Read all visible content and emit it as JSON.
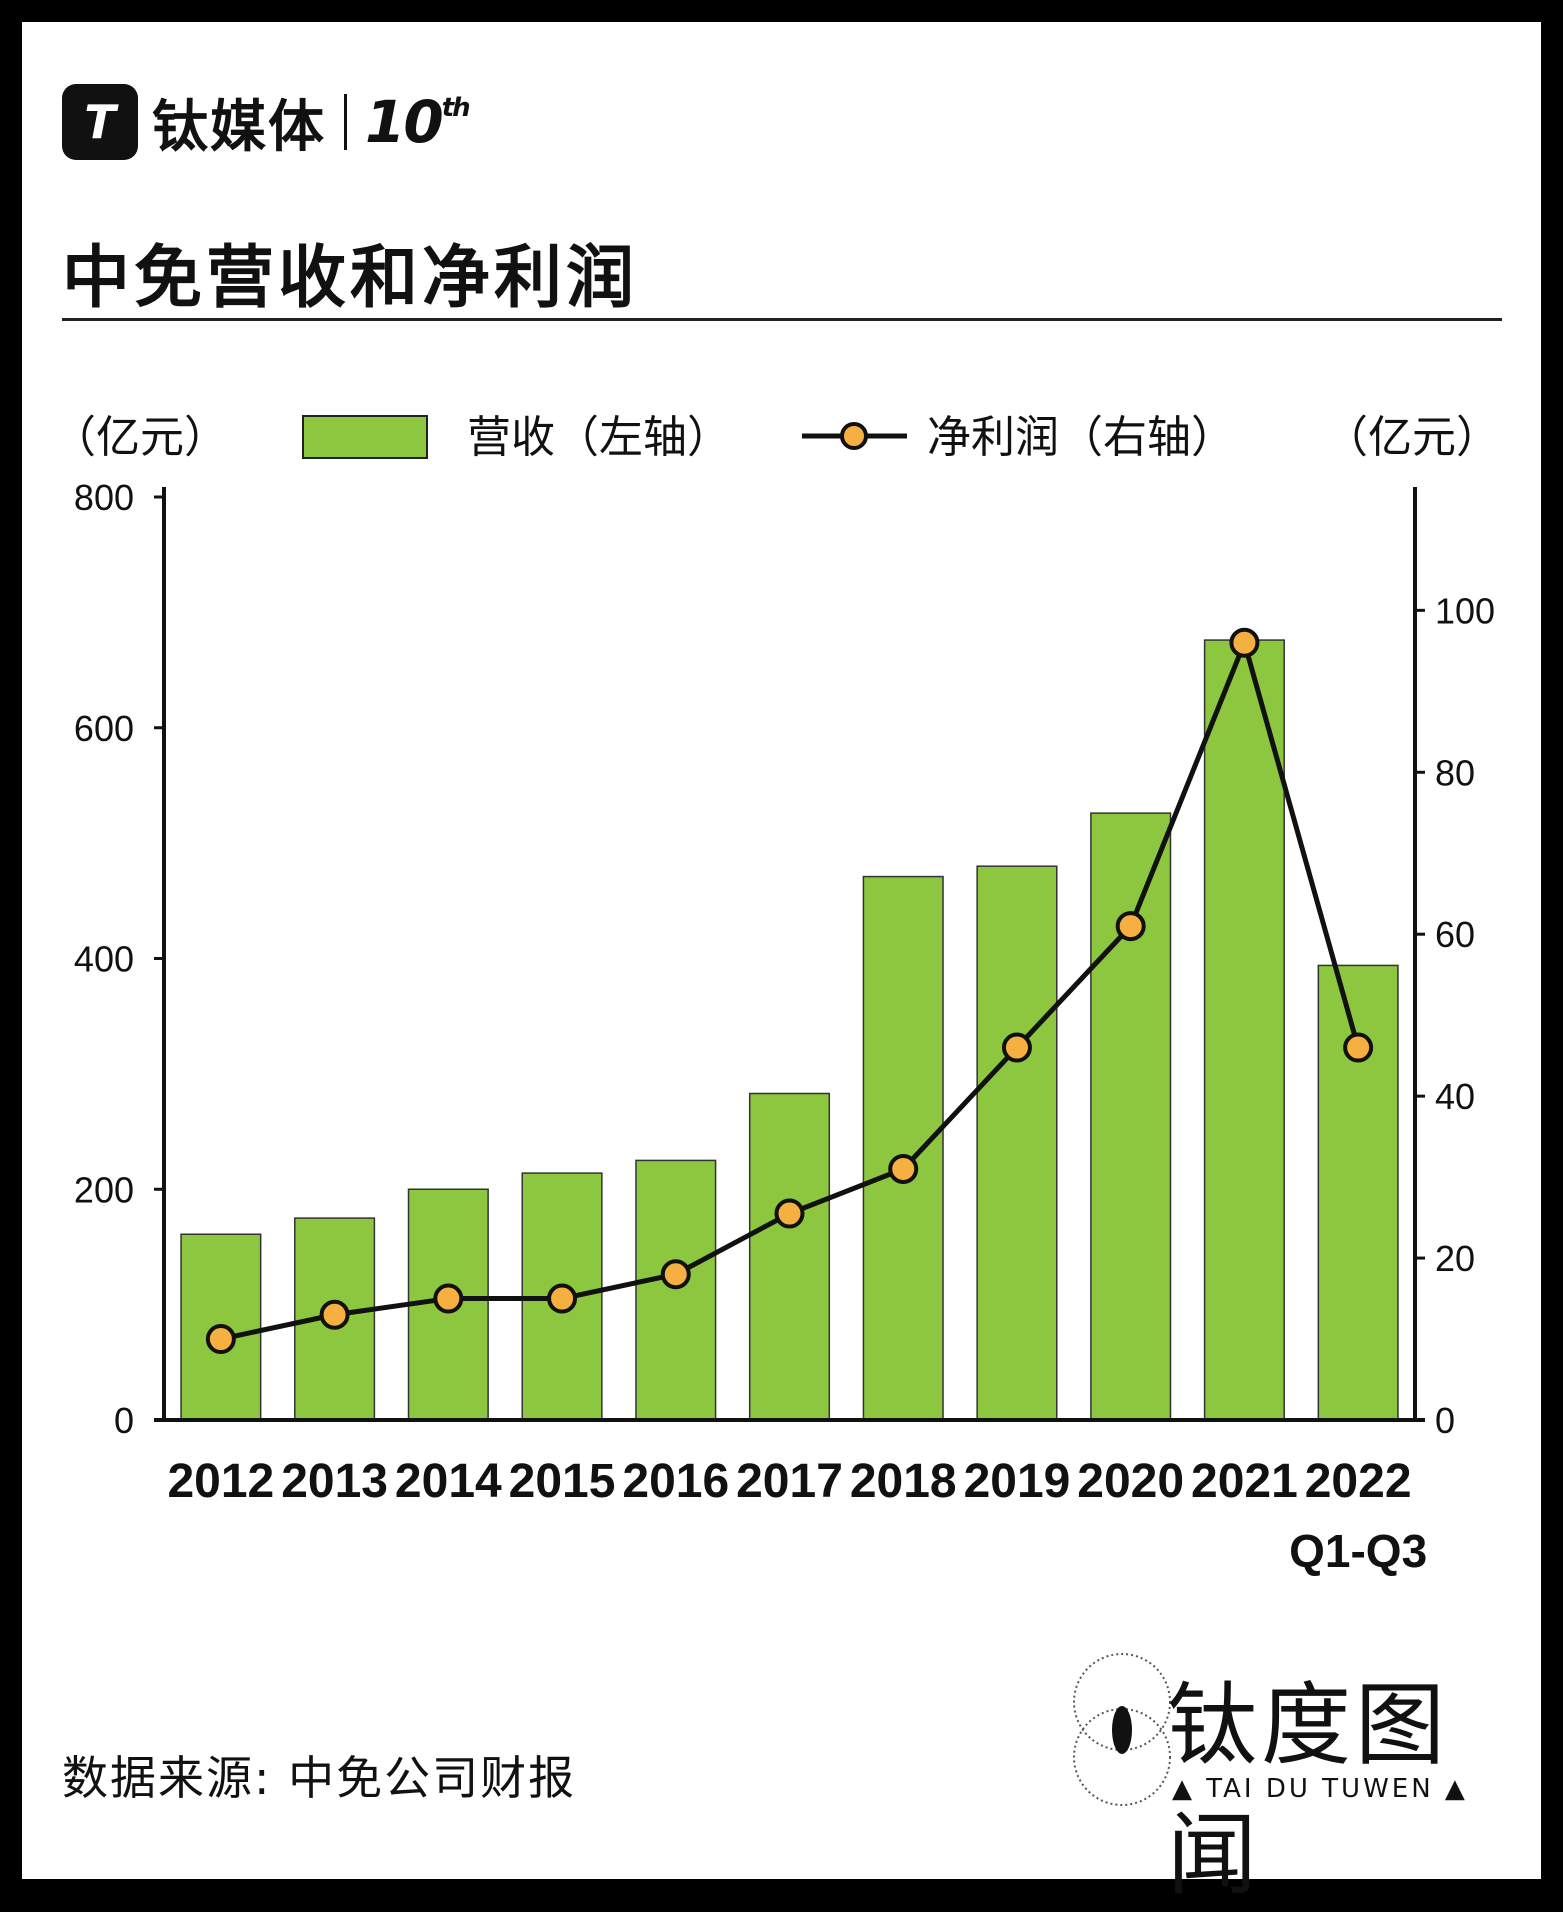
{
  "brand": {
    "logo_letter": "T",
    "name": "钛媒体",
    "edition": "10",
    "edition_suffix": "th"
  },
  "title": "中免营收和净利润",
  "source": "数据来源: 中免公司财报",
  "watermark": {
    "name": "钛度图闻",
    "sub": "▲ TAI DU TUWEN ▲"
  },
  "colors": {
    "bar": "#8dc63f",
    "line": "#111111",
    "marker": "#f5b041",
    "axis": "#111111"
  },
  "chart_data": {
    "type": "bar",
    "title": "中免营收和净利润",
    "legend": [
      {
        "label": "营收（左轴）",
        "kind": "bar"
      },
      {
        "label": "净利润（右轴）",
        "kind": "line"
      }
    ],
    "unit_left": "（亿元）",
    "unit_right": "（亿元）",
    "categories": [
      "2012",
      "2013",
      "2014",
      "2015",
      "2016",
      "2017",
      "2018",
      "2019",
      "2020",
      "2021",
      "2022"
    ],
    "category_sublabels": [
      "",
      "",
      "",
      "",
      "",
      "",
      "",
      "",
      "",
      "",
      "Q1-Q3"
    ],
    "series": [
      {
        "name": "营收（左轴）",
        "type": "bar",
        "axis": "left",
        "values": [
          161,
          175,
          200,
          214,
          225,
          283,
          471,
          480,
          526,
          676,
          394
        ]
      },
      {
        "name": "净利润（右轴）",
        "type": "line",
        "axis": "right",
        "values": [
          10,
          13,
          15,
          15,
          18,
          25.5,
          31,
          46,
          61,
          96,
          46
        ]
      }
    ],
    "left_axis": {
      "min": 0,
      "max": 800,
      "ticks": [
        0,
        200,
        400,
        600,
        800
      ]
    },
    "right_axis": {
      "min": 0,
      "max": 114,
      "ticks": [
        0,
        20,
        40,
        60,
        80,
        100
      ]
    },
    "grid": false,
    "legend_position": "top"
  }
}
